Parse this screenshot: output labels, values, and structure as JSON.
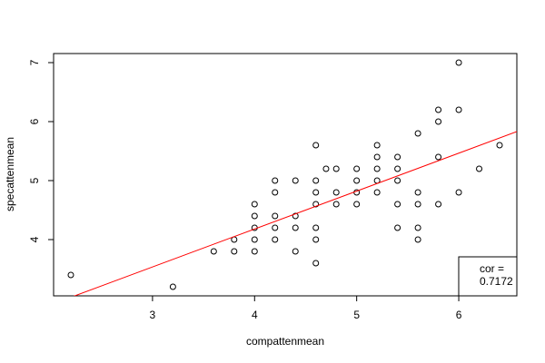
{
  "chart_data": {
    "type": "scatter",
    "x_label": "compattenmean",
    "y_label": "specattenmean",
    "x": [
      2.2,
      3.2,
      3.6,
      3.8,
      3.8,
      4.0,
      4.0,
      4.0,
      4.0,
      4.0,
      4.2,
      4.2,
      4.2,
      4.2,
      4.2,
      4.4,
      4.4,
      4.4,
      4.4,
      4.6,
      4.6,
      4.6,
      4.6,
      4.6,
      4.6,
      4.6,
      4.7,
      4.8,
      4.8,
      4.8,
      5.0,
      5.0,
      5.0,
      5.0,
      5.2,
      5.2,
      5.2,
      5.2,
      5.2,
      5.4,
      5.4,
      5.4,
      5.4,
      5.4,
      5.6,
      5.6,
      5.6,
      5.6,
      5.6,
      5.8,
      5.8,
      5.8,
      5.8,
      6.0,
      6.0,
      6.0,
      6.2,
      6.4
    ],
    "values": [
      3.4,
      3.2,
      3.8,
      3.8,
      4.0,
      3.8,
      4.0,
      4.2,
      4.4,
      4.6,
      4.0,
      4.2,
      4.4,
      4.8,
      5.0,
      3.8,
      4.2,
      4.4,
      5.0,
      3.6,
      4.0,
      4.2,
      4.6,
      4.8,
      5.0,
      5.6,
      5.2,
      4.6,
      4.8,
      5.2,
      4.6,
      4.8,
      5.0,
      5.2,
      4.8,
      5.0,
      5.2,
      5.4,
      5.6,
      4.2,
      4.6,
      5.0,
      5.2,
      5.4,
      4.0,
      4.2,
      4.6,
      4.8,
      5.8,
      4.6,
      5.4,
      6.0,
      6.2,
      4.8,
      6.2,
      7.0,
      5.2,
      5.6
    ],
    "color": "#000000",
    "regression_line": {
      "intercept": 1.607,
      "slope": 0.643,
      "color": "#ff0000"
    },
    "legend_lines": [
      "cor =",
      0.7172
    ],
    "legend_position": "bottom-right",
    "xlim": [
      2.031,
      6.569
    ],
    "ylim": [
      3.046,
      7.154
    ],
    "xticks": [
      3,
      4,
      5,
      6
    ],
    "yticks": [
      4,
      5,
      6,
      7
    ]
  }
}
